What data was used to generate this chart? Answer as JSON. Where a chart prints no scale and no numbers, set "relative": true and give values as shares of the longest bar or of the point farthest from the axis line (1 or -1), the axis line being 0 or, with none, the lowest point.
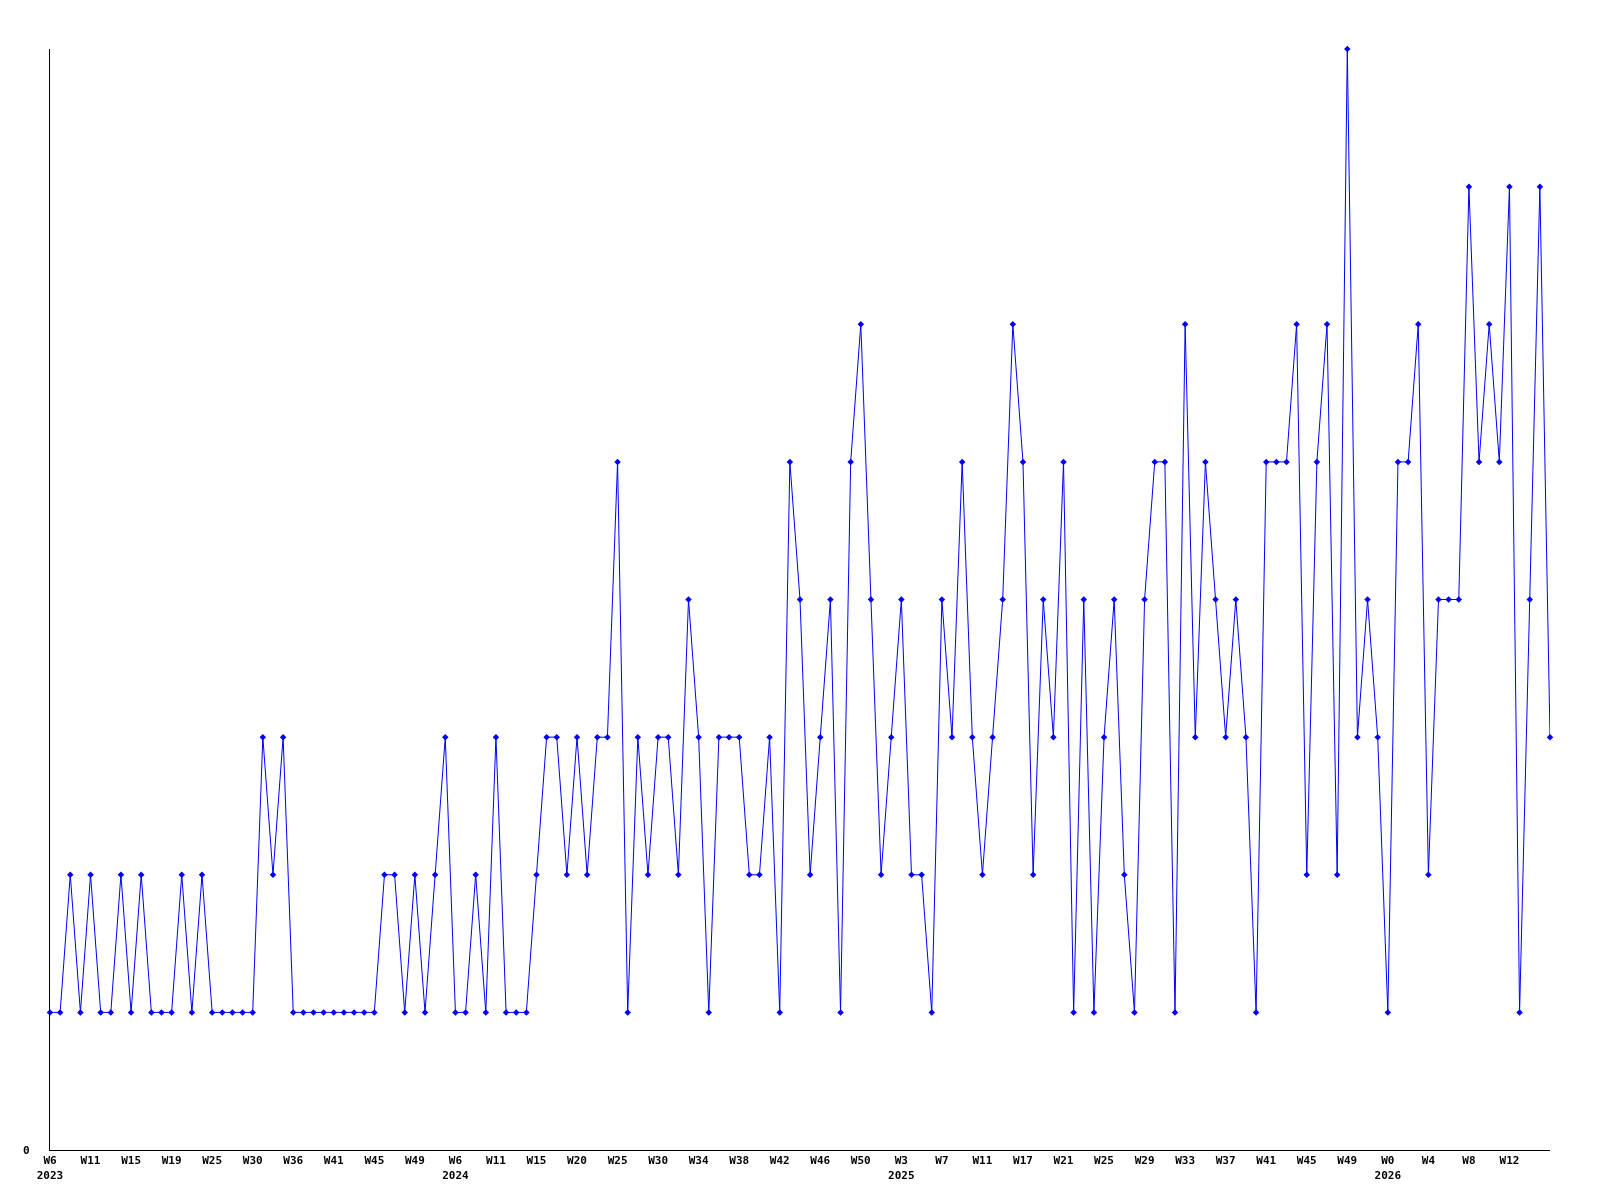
{
  "chart_data": {
    "type": "line",
    "relative": true,
    "color": "#0000ff",
    "marker": "diamond",
    "line_style": "solid",
    "grid": false,
    "annotations": [
      "0"
    ],
    "categories": [
      "W6\n2023",
      null,
      null,
      null,
      "W11",
      null,
      null,
      null,
      "W15",
      null,
      null,
      null,
      "W19",
      null,
      null,
      null,
      "W25",
      null,
      null,
      null,
      "W30",
      null,
      null,
      null,
      "W36",
      null,
      null,
      null,
      "W41",
      null,
      null,
      null,
      "W45",
      null,
      null,
      null,
      "W49",
      null,
      null,
      null,
      "W6\n2024",
      null,
      null,
      null,
      "W11",
      null,
      null,
      null,
      "W15",
      null,
      null,
      null,
      "W20",
      null,
      null,
      null,
      "W25",
      null,
      null,
      null,
      "W30",
      null,
      null,
      null,
      "W34",
      null,
      null,
      null,
      "W38",
      null,
      null,
      null,
      "W42",
      null,
      null,
      null,
      "W46",
      null,
      null,
      null,
      "W50",
      null,
      null,
      null,
      "W3\n2025",
      null,
      null,
      null,
      "W7",
      null,
      null,
      null,
      "W11",
      null,
      null,
      null,
      "W17",
      null,
      null,
      null,
      "W21",
      null,
      null,
      null,
      "W25",
      null,
      null,
      null,
      "W29",
      null,
      null,
      null,
      "W33",
      null,
      null,
      null,
      "W37",
      null,
      null,
      null,
      "W41",
      null,
      null,
      null,
      "W45",
      null,
      null,
      null,
      "W49",
      null,
      null,
      null,
      "W0\n2026",
      null,
      null,
      null,
      "W4",
      null,
      null,
      null,
      "W8",
      null,
      null,
      null,
      "W12",
      null,
      null,
      null,
      null
    ],
    "values": [
      0.125,
      0.125,
      0.25,
      0.125,
      0.25,
      0.125,
      0.125,
      0.25,
      0.125,
      0.25,
      0.125,
      0.125,
      0.125,
      0.25,
      0.125,
      0.25,
      0.125,
      0.125,
      0.125,
      0.125,
      0.125,
      0.375,
      0.25,
      0.375,
      0.125,
      0.125,
      0.125,
      0.125,
      0.125,
      0.125,
      0.125,
      0.125,
      0.125,
      0.25,
      0.25,
      0.125,
      0.25,
      0.125,
      0.25,
      0.375,
      0.125,
      0.125,
      0.25,
      0.125,
      0.375,
      0.125,
      0.125,
      0.125,
      0.25,
      0.375,
      0.375,
      0.25,
      0.375,
      0.25,
      0.375,
      0.375,
      0.625,
      0.125,
      0.375,
      0.25,
      0.375,
      0.375,
      0.25,
      0.5,
      0.375,
      0.125,
      0.375,
      0.375,
      0.375,
      0.25,
      0.25,
      0.375,
      0.125,
      0.625,
      0.5,
      0.25,
      0.375,
      0.5,
      0.125,
      0.625,
      0.75,
      0.5,
      0.25,
      0.375,
      0.5,
      0.25,
      0.25,
      0.125,
      0.5,
      0.375,
      0.625,
      0.375,
      0.25,
      0.375,
      0.5,
      0.75,
      0.625,
      0.25,
      0.5,
      0.375,
      0.625,
      0.125,
      0.5,
      0.125,
      0.375,
      0.5,
      0.25,
      0.125,
      0.5,
      0.625,
      0.625,
      0.125,
      0.75,
      0.375,
      0.625,
      0.5,
      0.375,
      0.5,
      0.375,
      0.125,
      0.625,
      0.625,
      0.625,
      0.75,
      0.25,
      0.625,
      0.75,
      0.25,
      1,
      0.375,
      0.5,
      0.375,
      0.125,
      0.625,
      0.625,
      0.75,
      0.25,
      0.5,
      0.5,
      0.5,
      0.875,
      0.625,
      0.75,
      0.625,
      0.875,
      0.125,
      0.5,
      0.875,
      0.375
    ]
  }
}
